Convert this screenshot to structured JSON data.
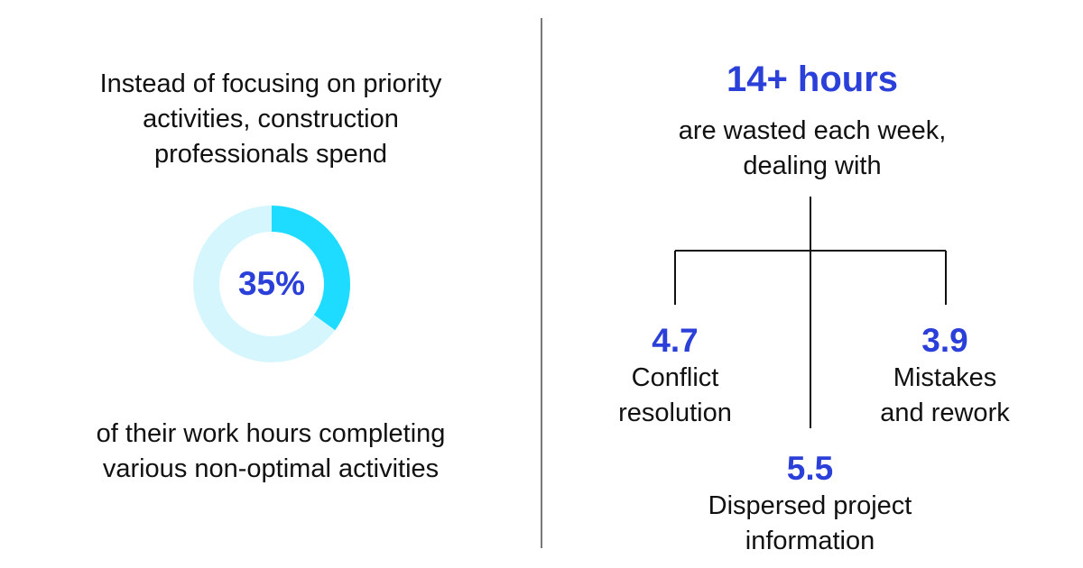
{
  "left": {
    "intro_text": "Instead of focusing on priority\nactivities, construction\nprofessionals spend",
    "outro_text": "of their work hours completing\nvarious non-optimal activities",
    "donut": {
      "value_label": "35%",
      "fraction": 0.35,
      "fill_color": "#1EDCFF",
      "track_color": "#D6F6FD"
    }
  },
  "right": {
    "headline": "14+ hours",
    "subline": "are wasted  each week,\ndealing with",
    "items": [
      {
        "value": "4.7",
        "label": "Conflict\nresolution"
      },
      {
        "value": "3.9",
        "label": "Mistakes\nand rework"
      },
      {
        "value": "5.5",
        "label": "Dispersed project\ninformation"
      }
    ]
  },
  "colors": {
    "accent": "#2B3FD9",
    "text": "#111111",
    "divider": "#7a7a7a"
  }
}
